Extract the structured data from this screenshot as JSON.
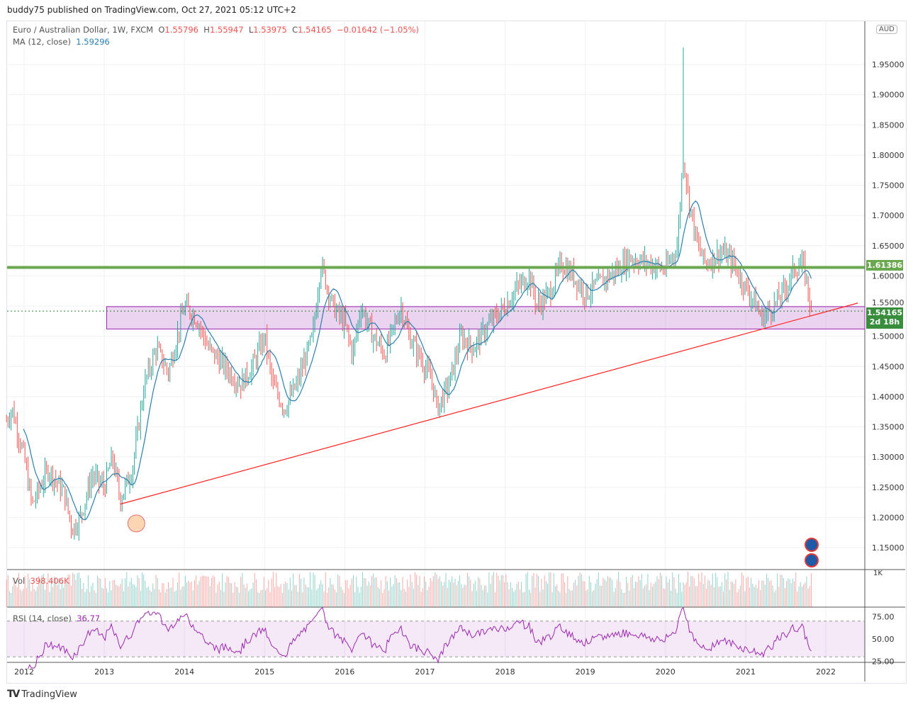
{
  "header": {
    "published": "buddy75 published on TradingView.com, Oct 27, 2021 05:12 UTC+2"
  },
  "legend": {
    "symbol": "Euro / Australian Dollar, 1W, FXCM",
    "o_label": "O",
    "o": "1.55796",
    "h_label": "H",
    "h": "1.55947",
    "l_label": "L",
    "l": "1.53975",
    "c_label": "C",
    "c": "1.54165",
    "change": "−0.01642 (−1.05%)",
    "ma_label": "MA (12, close)",
    "ma": "1.59296",
    "vol_label": "Vol",
    "vol": "398.406K",
    "rsi_label": "RSI (14, close)",
    "rsi": "36.77"
  },
  "price_scale": {
    "currency": "AUD",
    "ticks": [
      "1.95000",
      "1.90000",
      "1.85000",
      "1.80000",
      "1.75000",
      "1.70000",
      "1.65000",
      "1.60000",
      "1.55000",
      "1.50000",
      "1.45000",
      "1.40000",
      "1.35000",
      "1.30000",
      "1.25000",
      "1.20000",
      "1.15000"
    ],
    "vol_tick": "1K",
    "rsi_ticks": [
      "75.00",
      "50.00",
      "25.00"
    ]
  },
  "tags": {
    "level": "1.61386",
    "price": "1.54165",
    "countdown": "2d 18h"
  },
  "footer": {
    "brand": "TradingView"
  },
  "colors": {
    "up": "#26a69a",
    "down": "#ef5350",
    "ma": "#2a7fb0",
    "level": "#6aa84f",
    "trend": "#ff2020",
    "zone": "#9c27b0",
    "rsi": "#9c27b0"
  },
  "chart_data": {
    "type": "candlestick",
    "title": "Euro / Australian Dollar, 1W, FXCM",
    "x_ticks": [
      "2012",
      "2013",
      "2014",
      "2015",
      "2016",
      "2017",
      "2018",
      "2019",
      "2020",
      "2021",
      "2022"
    ],
    "ylim": [
      1.12,
      2.0
    ],
    "close_path": [
      [
        2011.78,
        1.36
      ],
      [
        2011.85,
        1.38
      ],
      [
        2012.0,
        1.3
      ],
      [
        2012.1,
        1.22
      ],
      [
        2012.3,
        1.28
      ],
      [
        2012.5,
        1.24
      ],
      [
        2012.6,
        1.18
      ],
      [
        2012.7,
        1.2
      ],
      [
        2012.85,
        1.27
      ],
      [
        2013.0,
        1.25
      ],
      [
        2013.1,
        1.3
      ],
      [
        2013.2,
        1.23
      ],
      [
        2013.35,
        1.28
      ],
      [
        2013.5,
        1.42
      ],
      [
        2013.65,
        1.48
      ],
      [
        2013.8,
        1.44
      ],
      [
        2014.0,
        1.55
      ],
      [
        2014.15,
        1.53
      ],
      [
        2014.3,
        1.48
      ],
      [
        2014.5,
        1.45
      ],
      [
        2014.7,
        1.42
      ],
      [
        2014.85,
        1.45
      ],
      [
        2015.0,
        1.5
      ],
      [
        2015.1,
        1.42
      ],
      [
        2015.25,
        1.38
      ],
      [
        2015.4,
        1.42
      ],
      [
        2015.6,
        1.5
      ],
      [
        2015.7,
        1.62
      ],
      [
        2015.85,
        1.55
      ],
      [
        2016.0,
        1.52
      ],
      [
        2016.1,
        1.47
      ],
      [
        2016.2,
        1.55
      ],
      [
        2016.35,
        1.5
      ],
      [
        2016.5,
        1.47
      ],
      [
        2016.7,
        1.55
      ],
      [
        2016.8,
        1.5
      ],
      [
        2017.0,
        1.45
      ],
      [
        2017.1,
        1.42
      ],
      [
        2017.15,
        1.38
      ],
      [
        2017.3,
        1.42
      ],
      [
        2017.45,
        1.5
      ],
      [
        2017.6,
        1.48
      ],
      [
        2017.8,
        1.52
      ],
      [
        2018.0,
        1.55
      ],
      [
        2018.15,
        1.58
      ],
      [
        2018.3,
        1.6
      ],
      [
        2018.4,
        1.55
      ],
      [
        2018.55,
        1.57
      ],
      [
        2018.7,
        1.62
      ],
      [
        2018.85,
        1.6
      ],
      [
        2019.0,
        1.57
      ],
      [
        2019.2,
        1.59
      ],
      [
        2019.4,
        1.61
      ],
      [
        2019.55,
        1.63
      ],
      [
        2019.8,
        1.62
      ],
      [
        2020.0,
        1.61
      ],
      [
        2020.15,
        1.65
      ],
      [
        2020.22,
        1.8
      ],
      [
        2020.3,
        1.72
      ],
      [
        2020.4,
        1.65
      ],
      [
        2020.5,
        1.62
      ],
      [
        2020.7,
        1.64
      ],
      [
        2020.85,
        1.62
      ],
      [
        2021.0,
        1.58
      ],
      [
        2021.1,
        1.56
      ],
      [
        2021.2,
        1.53
      ],
      [
        2021.35,
        1.55
      ],
      [
        2021.5,
        1.58
      ],
      [
        2021.6,
        1.61
      ],
      [
        2021.7,
        1.62
      ],
      [
        2021.75,
        1.6
      ],
      [
        2021.82,
        1.54165
      ]
    ],
    "spike_high": [
      2020.22,
      1.978
    ],
    "horizontal_level": 1.61386,
    "last_price": 1.54165,
    "zone": {
      "from": 2013.03,
      "to": 2022.5,
      "top": 1.549,
      "bottom": 1.512
    },
    "trendline": [
      [
        2013.2,
        1.222
      ],
      [
        2022.4,
        1.555
      ]
    ],
    "marker_circle": [
      2013.4,
      1.19
    ],
    "ma_period": 12,
    "rsi_period": 14,
    "rsi_bands": [
      30,
      70
    ]
  }
}
